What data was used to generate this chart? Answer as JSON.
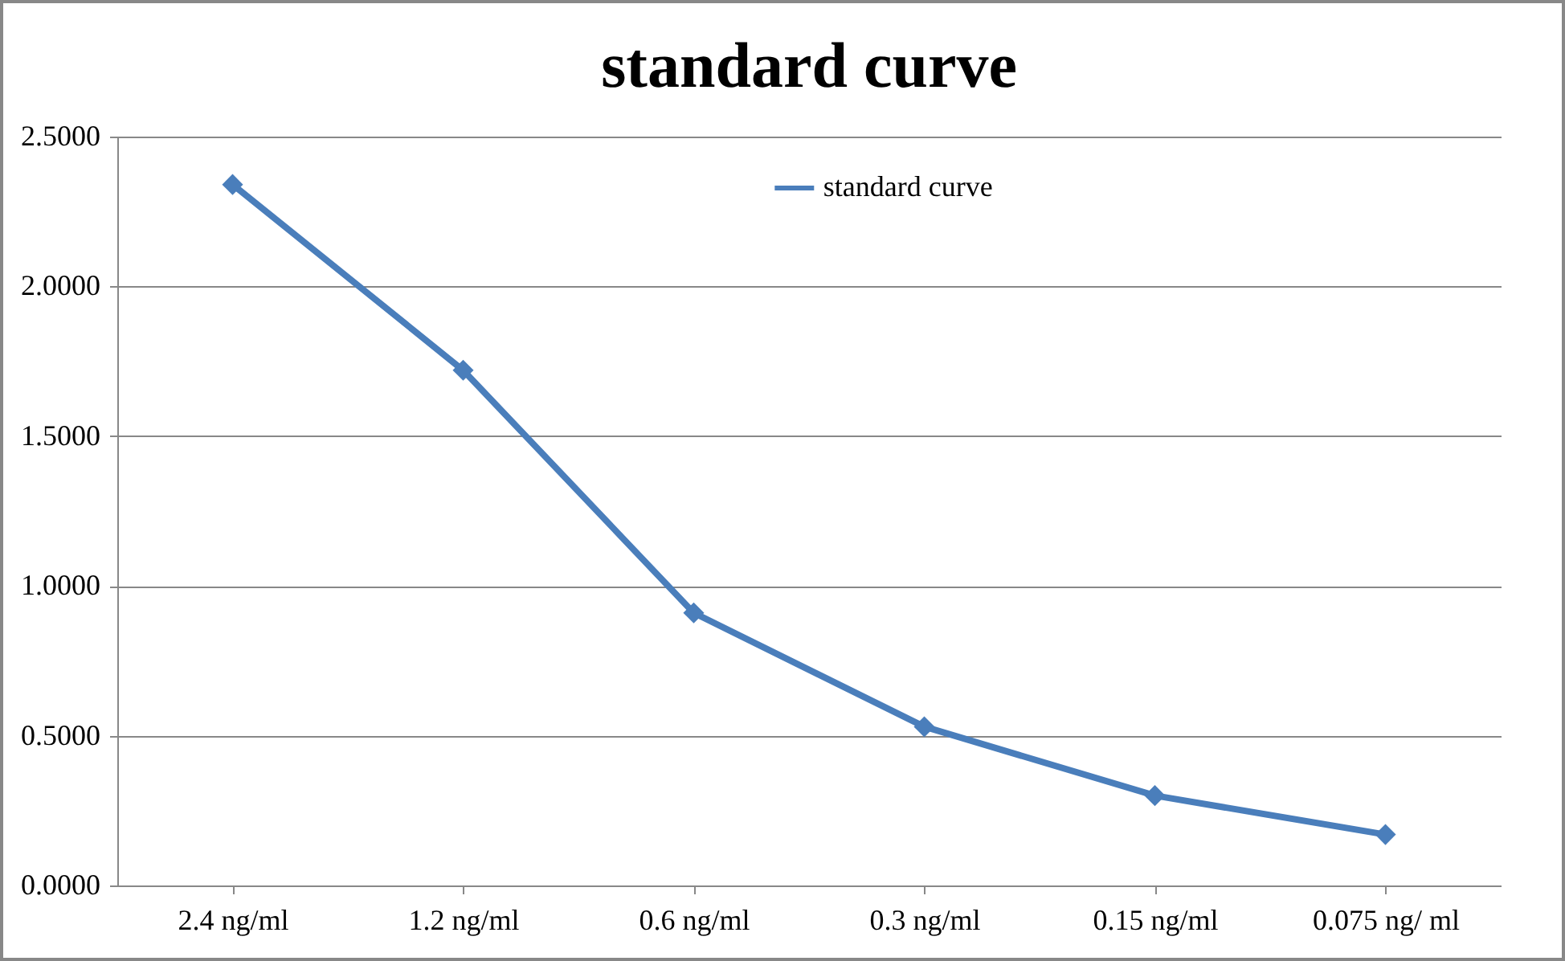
{
  "chart_data": {
    "type": "line",
    "title": "standard curve",
    "categories": [
      "2.4 ng/ml",
      "1.2 ng/ml",
      "0.6 ng/ml",
      "0.3 ng/ml",
      "0.15 ng/ml",
      "0.075 ng/ ml"
    ],
    "series": [
      {
        "name": "standard curve",
        "color": "#4a7ebb",
        "values": [
          2.34,
          1.72,
          0.91,
          0.53,
          0.3,
          0.17
        ]
      }
    ],
    "ylim": [
      0,
      2.5
    ],
    "yticks": [
      {
        "value": 0,
        "label": "0.0000"
      },
      {
        "value": 0.5,
        "label": "0.5000"
      },
      {
        "value": 1,
        "label": "1.0000"
      },
      {
        "value": 1.5,
        "label": "1.5000"
      },
      {
        "value": 2,
        "label": "2.0000"
      },
      {
        "value": 2.5,
        "label": "2.5000"
      }
    ],
    "grid": "y",
    "legend": "top",
    "marker": "diamond",
    "line_style": "solid"
  }
}
